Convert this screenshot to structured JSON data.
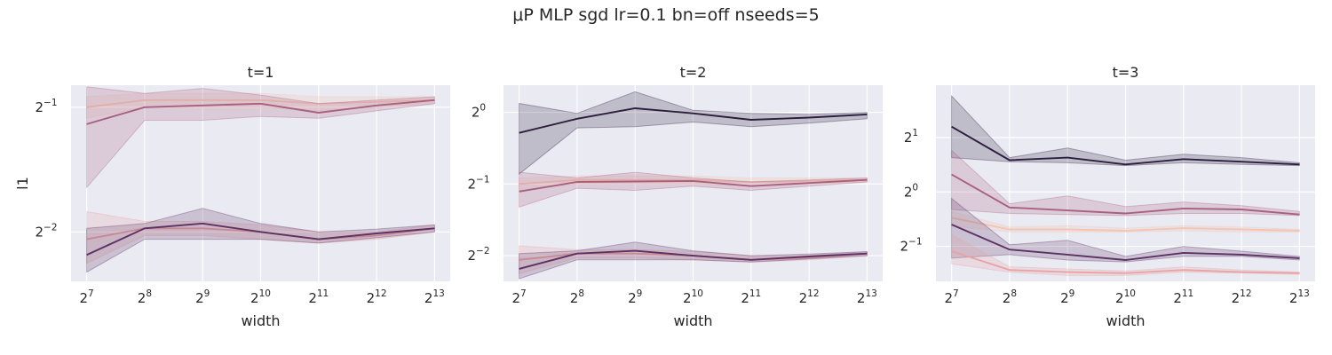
{
  "figure": {
    "title": "μP MLP sgd lr=0.1 bn=off nseeds=5"
  },
  "chart_data": [
    {
      "type": "line",
      "title": "t=1",
      "xlabel": "width",
      "ylabel": "l1",
      "x_scale": "log2",
      "y_scale": "log2",
      "x": [
        128,
        256,
        512,
        1024,
        2048,
        4096,
        8192
      ],
      "x_ticks": [
        7,
        8,
        9,
        10,
        11,
        12,
        13
      ],
      "y_ticks": [
        -2,
        -1
      ],
      "ylim": [
        0.19,
        0.565
      ],
      "grid": true,
      "series": [
        {
          "color": "#f2c5b4",
          "values": [
            0.5,
            0.52,
            0.52,
            0.52,
            0.51,
            0.515,
            0.52
          ],
          "lower": [
            0.47,
            0.5,
            0.5,
            0.5,
            0.49,
            0.5,
            0.51
          ],
          "upper": [
            0.53,
            0.54,
            0.54,
            0.54,
            0.53,
            0.53,
            0.53
          ]
        },
        {
          "color": "#a8607e",
          "values": [
            0.455,
            0.5,
            0.505,
            0.51,
            0.485,
            0.505,
            0.52
          ],
          "lower": [
            0.32,
            0.465,
            0.465,
            0.475,
            0.47,
            0.49,
            0.51
          ],
          "upper": [
            0.56,
            0.54,
            0.555,
            0.535,
            0.51,
            0.52,
            0.53
          ]
        },
        {
          "color": "#e8a3a3",
          "values": [
            0.24,
            0.255,
            0.255,
            0.25,
            0.24,
            0.245,
            0.255
          ],
          "lower": [
            0.21,
            0.245,
            0.245,
            0.24,
            0.235,
            0.24,
            0.25
          ],
          "upper": [
            0.28,
            0.265,
            0.265,
            0.26,
            0.25,
            0.25,
            0.26
          ]
        },
        {
          "color": "#5d3163",
          "values": [
            0.22,
            0.255,
            0.262,
            0.25,
            0.24,
            0.248,
            0.255
          ],
          "lower": [
            0.2,
            0.24,
            0.24,
            0.24,
            0.235,
            0.242,
            0.25
          ],
          "upper": [
            0.255,
            0.262,
            0.285,
            0.262,
            0.25,
            0.254,
            0.26
          ]
        }
      ]
    },
    {
      "type": "line",
      "title": "t=2",
      "xlabel": "width",
      "ylabel": "",
      "x_scale": "log2",
      "y_scale": "log2",
      "x": [
        128,
        256,
        512,
        1024,
        2048,
        4096,
        8192
      ],
      "x_ticks": [
        7,
        8,
        9,
        10,
        11,
        12,
        13
      ],
      "y_ticks": [
        -2,
        -1,
        0
      ],
      "ylim": [
        0.195,
        1.3
      ],
      "grid": true,
      "series": [
        {
          "color": "#2d1e3e",
          "values": [
            0.82,
            0.94,
            1.04,
            0.99,
            0.93,
            0.95,
            0.98
          ],
          "lower": [
            0.55,
            0.86,
            0.87,
            0.91,
            0.87,
            0.9,
            0.94
          ],
          "upper": [
            1.09,
            0.99,
            1.22,
            1.02,
            0.99,
            0.98,
            1.0
          ]
        },
        {
          "color": "#f2c5b4",
          "values": [
            0.5,
            0.52,
            0.52,
            0.52,
            0.51,
            0.515,
            0.52
          ],
          "lower": [
            0.47,
            0.5,
            0.5,
            0.5,
            0.49,
            0.5,
            0.51
          ],
          "upper": [
            0.53,
            0.54,
            0.54,
            0.54,
            0.53,
            0.53,
            0.53
          ]
        },
        {
          "color": "#a8607e",
          "values": [
            0.465,
            0.51,
            0.512,
            0.515,
            0.49,
            0.505,
            0.52
          ],
          "lower": [
            0.4,
            0.48,
            0.47,
            0.49,
            0.47,
            0.49,
            0.51
          ],
          "upper": [
            0.56,
            0.53,
            0.56,
            0.53,
            0.51,
            0.52,
            0.53
          ]
        },
        {
          "color": "#e8a3a3",
          "values": [
            0.24,
            0.255,
            0.255,
            0.25,
            0.24,
            0.245,
            0.255
          ],
          "lower": [
            0.21,
            0.245,
            0.245,
            0.24,
            0.235,
            0.24,
            0.25
          ],
          "upper": [
            0.275,
            0.265,
            0.265,
            0.26,
            0.25,
            0.25,
            0.26
          ]
        },
        {
          "color": "#5d3163",
          "values": [
            0.22,
            0.255,
            0.262,
            0.25,
            0.24,
            0.248,
            0.255
          ],
          "lower": [
            0.2,
            0.24,
            0.24,
            0.24,
            0.235,
            0.242,
            0.25
          ],
          "upper": [
            0.255,
            0.262,
            0.285,
            0.262,
            0.25,
            0.254,
            0.26
          ]
        }
      ]
    },
    {
      "type": "line",
      "title": "t=3",
      "xlabel": "width",
      "ylabel": "",
      "x_scale": "log2",
      "y_scale": "log2",
      "x": [
        128,
        256,
        512,
        1024,
        2048,
        4096,
        8192
      ],
      "x_ticks": [
        7,
        8,
        9,
        10,
        11,
        12,
        13
      ],
      "y_ticks": [
        -1,
        0,
        1
      ],
      "ylim": [
        0.32,
        3.9
      ],
      "grid": true,
      "series": [
        {
          "color": "#2d1e3e",
          "values": [
            2.3,
            1.5,
            1.55,
            1.42,
            1.52,
            1.47,
            1.42
          ],
          "lower": [
            1.55,
            1.47,
            1.45,
            1.4,
            1.45,
            1.42,
            1.4
          ],
          "upper": [
            3.4,
            1.55,
            1.75,
            1.5,
            1.62,
            1.55,
            1.45
          ]
        },
        {
          "color": "#a8607e",
          "values": [
            1.25,
            0.82,
            0.79,
            0.76,
            0.81,
            0.8,
            0.75
          ],
          "lower": [
            0.8,
            0.76,
            0.75,
            0.74,
            0.76,
            0.76,
            0.74
          ],
          "upper": [
            1.7,
            0.86,
            0.95,
            0.83,
            0.88,
            0.84,
            0.78
          ]
        },
        {
          "color": "#f2c5b4",
          "values": [
            0.72,
            0.62,
            0.62,
            0.61,
            0.63,
            0.62,
            0.61
          ],
          "lower": [
            0.65,
            0.6,
            0.6,
            0.6,
            0.61,
            0.6,
            0.6
          ],
          "upper": [
            0.78,
            0.64,
            0.65,
            0.63,
            0.65,
            0.64,
            0.62
          ]
        },
        {
          "color": "#5d3163",
          "values": [
            0.66,
            0.48,
            0.45,
            0.42,
            0.46,
            0.45,
            0.43
          ],
          "lower": [
            0.43,
            0.45,
            0.42,
            0.41,
            0.44,
            0.44,
            0.42
          ],
          "upper": [
            0.92,
            0.51,
            0.54,
            0.44,
            0.5,
            0.47,
            0.44
          ]
        },
        {
          "color": "#e8a3a3",
          "values": [
            0.47,
            0.37,
            0.36,
            0.355,
            0.37,
            0.36,
            0.355
          ],
          "lower": [
            0.4,
            0.36,
            0.345,
            0.345,
            0.36,
            0.355,
            0.35
          ],
          "upper": [
            0.58,
            0.385,
            0.375,
            0.365,
            0.385,
            0.37,
            0.36
          ]
        }
      ]
    }
  ]
}
